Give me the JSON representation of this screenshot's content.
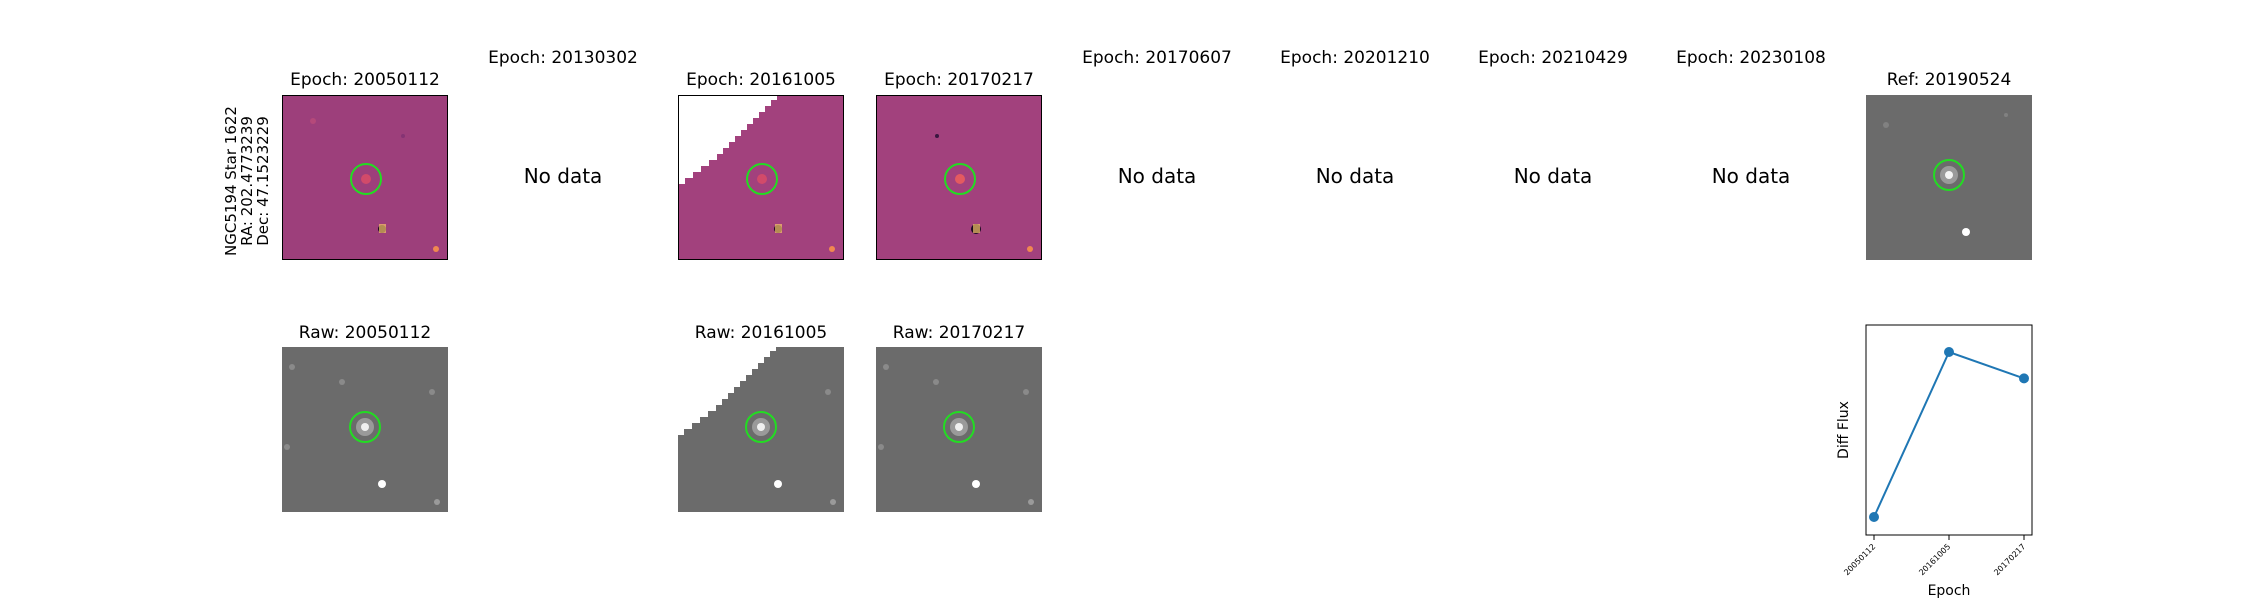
{
  "object_label": {
    "name": "NGC5194 Star 1622",
    "ra": "RA: 202.4773239",
    "dec": "Dec: 47.1523229"
  },
  "diff_titles": [
    "Epoch: 20050112",
    "Epoch: 20130302",
    "Epoch: 20161005",
    "Epoch: 20170217",
    "Epoch: 20170607",
    "Epoch: 20201210",
    "Epoch: 20210429",
    "Epoch: 20230108"
  ],
  "ref_title": "Ref: 20190524",
  "no_data_text": "No data",
  "raw_titles": [
    "Raw: 20050112",
    "Raw: 20161005",
    "Raw: 20170217"
  ],
  "colors": {
    "diff_bg": "#a2417d",
    "raw_bg": "#6b6b6b",
    "marker_circle": "#22dd22",
    "line": "#1f77b4"
  },
  "chart_data": {
    "type": "line",
    "x": [
      "20050112",
      "20161005",
      "20170217"
    ],
    "y": [
      0.0,
      1.0,
      0.84
    ],
    "ylabel": "Diff Flux",
    "xlabel": "Epoch",
    "yticks_shown": false
  }
}
